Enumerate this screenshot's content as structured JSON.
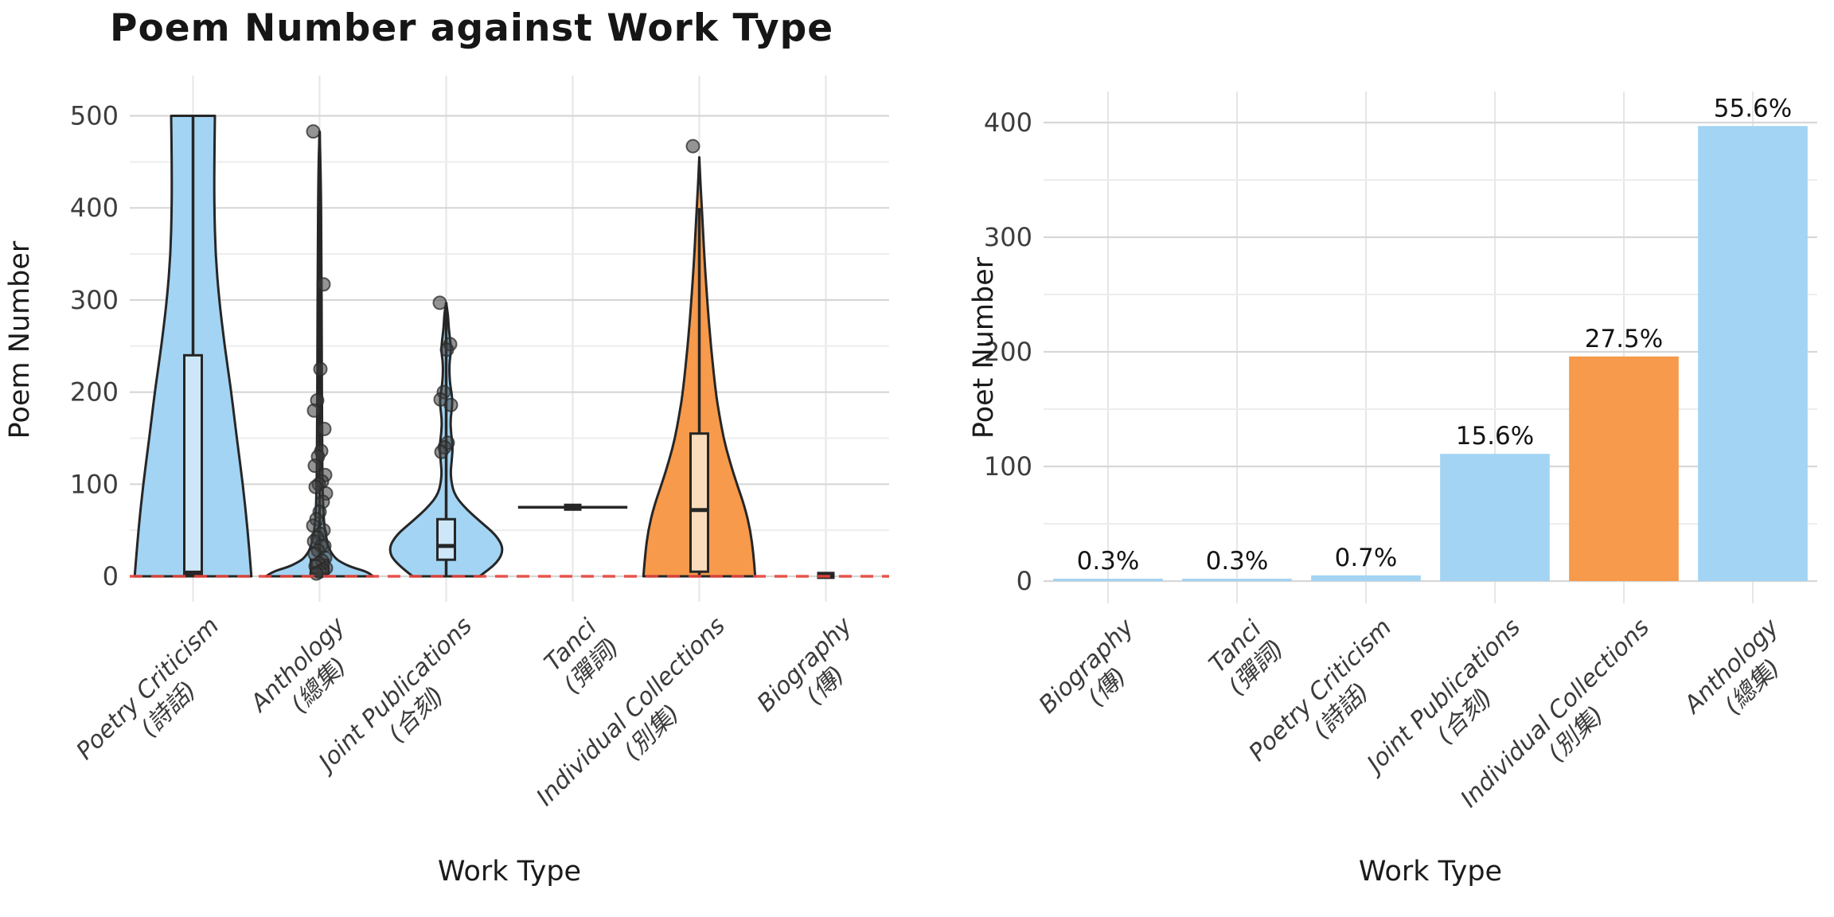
{
  "palette": {
    "blue": "#a3d4f3",
    "orange": "#f79a4b",
    "blue_box": "#cde7f8",
    "orange_box": "#fadcbc",
    "edge": "#262626",
    "point_fill": "#3d3d3d",
    "grid_major": "#d7d7d7",
    "grid_minor": "#ededed",
    "grid_vertical": "#e6e6e6",
    "zero_line_red": "#e8453c",
    "tick_text": "#3d3d3d"
  },
  "chart_data": [
    {
      "type": "violin",
      "title": "Poem Number against Work Type",
      "xlabel": "Work Type",
      "ylabel": "Poem Number",
      "ylim": [
        -28,
        544
      ],
      "yticks": [
        0,
        100,
        200,
        300,
        400,
        500
      ],
      "yticks_minor": [
        50,
        150,
        250,
        350,
        450
      ],
      "zero_reference_line": {
        "y": 0,
        "style": "dashed",
        "color": "#e8453c"
      },
      "legend": "none",
      "grid": "on",
      "categories": [
        {
          "label": "Poetry Criticism",
          "label_zh": "(詩話)",
          "color": "blue",
          "violin_profile": [
            [
              0,
              0.96
            ],
            [
              50,
              0.9
            ],
            [
              100,
              0.82
            ],
            [
              150,
              0.72
            ],
            [
              200,
              0.63
            ],
            [
              250,
              0.52
            ],
            [
              300,
              0.43
            ],
            [
              350,
              0.37
            ],
            [
              400,
              0.35
            ],
            [
              450,
              0.35
            ],
            [
              500,
              0.36
            ]
          ],
          "truncated_top": true,
          "box": {
            "whisker_low": 0,
            "q1": 2,
            "median": 4,
            "q3": 240,
            "whisker_high": 500
          },
          "points": []
        },
        {
          "label": "Anthology",
          "label_zh": "(總集)",
          "color": "blue",
          "violin_profile": [
            [
              0,
              0.88
            ],
            [
              5,
              0.78
            ],
            [
              10,
              0.52
            ],
            [
              15,
              0.36
            ],
            [
              20,
              0.25
            ],
            [
              30,
              0.15
            ],
            [
              45,
              0.1
            ],
            [
              60,
              0.07
            ],
            [
              90,
              0.05
            ],
            [
              150,
              0.04
            ],
            [
              250,
              0.035
            ],
            [
              350,
              0.03
            ],
            [
              440,
              0.02
            ],
            [
              483,
              0
            ]
          ],
          "truncated_top": false,
          "box": {
            "whisker_low": 0,
            "q1": 3,
            "median": 9,
            "q3": 18,
            "whisker_high": 483
          },
          "points": [
            483,
            317,
            225,
            191,
            180,
            160,
            136,
            130,
            120,
            110,
            103,
            100,
            97,
            90,
            81,
            70,
            62,
            55,
            50,
            46,
            42,
            38,
            33,
            33,
            28,
            24,
            20,
            17,
            14,
            11,
            9,
            7,
            5,
            3
          ]
        },
        {
          "label": "Joint Publications",
          "label_zh": "(合刻)",
          "color": "blue",
          "violin_profile": [
            [
              0,
              0.55
            ],
            [
              15,
              0.85
            ],
            [
              30,
              0.95
            ],
            [
              45,
              0.82
            ],
            [
              60,
              0.55
            ],
            [
              75,
              0.3
            ],
            [
              90,
              0.12
            ],
            [
              110,
              0.07
            ],
            [
              125,
              0.09
            ],
            [
              140,
              0.11
            ],
            [
              155,
              0.08
            ],
            [
              170,
              0.07
            ],
            [
              185,
              0.1
            ],
            [
              195,
              0.1
            ],
            [
              210,
              0.06
            ],
            [
              230,
              0.05
            ],
            [
              245,
              0.08
            ],
            [
              255,
              0.07
            ],
            [
              270,
              0.04
            ],
            [
              285,
              0.03
            ],
            [
              297,
              0
            ]
          ],
          "truncated_top": false,
          "box": {
            "whisker_low": 0,
            "q1": 18,
            "median": 33,
            "q3": 62,
            "whisker_high": 297
          },
          "points": [
            297,
            252,
            246,
            200,
            192,
            186,
            145,
            140,
            135
          ]
        },
        {
          "label": "Tanci",
          "label_zh": "(彈詞)",
          "color": "blue",
          "single_value": 75,
          "line_halfwidth": 0.9,
          "points": []
        },
        {
          "label": "Individual Collections",
          "label_zh": "(別集)",
          "color": "orange",
          "violin_profile": [
            [
              0,
              0.92
            ],
            [
              25,
              0.89
            ],
            [
              50,
              0.84
            ],
            [
              75,
              0.75
            ],
            [
              100,
              0.62
            ],
            [
              125,
              0.5
            ],
            [
              150,
              0.4
            ],
            [
              175,
              0.33
            ],
            [
              200,
              0.27
            ],
            [
              250,
              0.19
            ],
            [
              300,
              0.13
            ],
            [
              350,
              0.08
            ],
            [
              390,
              0.05
            ],
            [
              425,
              0.02
            ],
            [
              455,
              0
            ]
          ],
          "truncated_top": false,
          "box": {
            "whisker_low": 0,
            "q1": 5,
            "median": 72,
            "q3": 155,
            "whisker_high": 400
          },
          "points": [
            467
          ]
        },
        {
          "label": "Biography",
          "label_zh": "(傳)",
          "color": "blue",
          "single_value": 1,
          "line_halfwidth": 0.1,
          "points": []
        }
      ]
    },
    {
      "type": "bar",
      "title": "",
      "xlabel": "Work Type",
      "ylabel": "Poet Number",
      "ylim": [
        -20,
        427
      ],
      "yticks": [
        0,
        100,
        200,
        300,
        400
      ],
      "yticks_minor": [
        50,
        150,
        250,
        350
      ],
      "grid": "on",
      "categories": [
        {
          "label": "Biography",
          "label_zh": "(傳)"
        },
        {
          "label": "Tanci",
          "label_zh": "(彈詞)"
        },
        {
          "label": "Poetry Criticism",
          "label_zh": "(詩話)"
        },
        {
          "label": "Joint Publications",
          "label_zh": "(合刻)"
        },
        {
          "label": "Individual Collections",
          "label_zh": "(別集)"
        },
        {
          "label": "Anthology",
          "label_zh": "(總集)"
        }
      ],
      "values": [
        2,
        2,
        5,
        111,
        196,
        397
      ],
      "percent_labels": [
        "0.3%",
        "0.3%",
        "0.7%",
        "15.6%",
        "27.5%",
        "55.6%"
      ],
      "bar_colors": [
        "blue",
        "blue",
        "blue",
        "blue",
        "orange",
        "blue"
      ]
    }
  ]
}
